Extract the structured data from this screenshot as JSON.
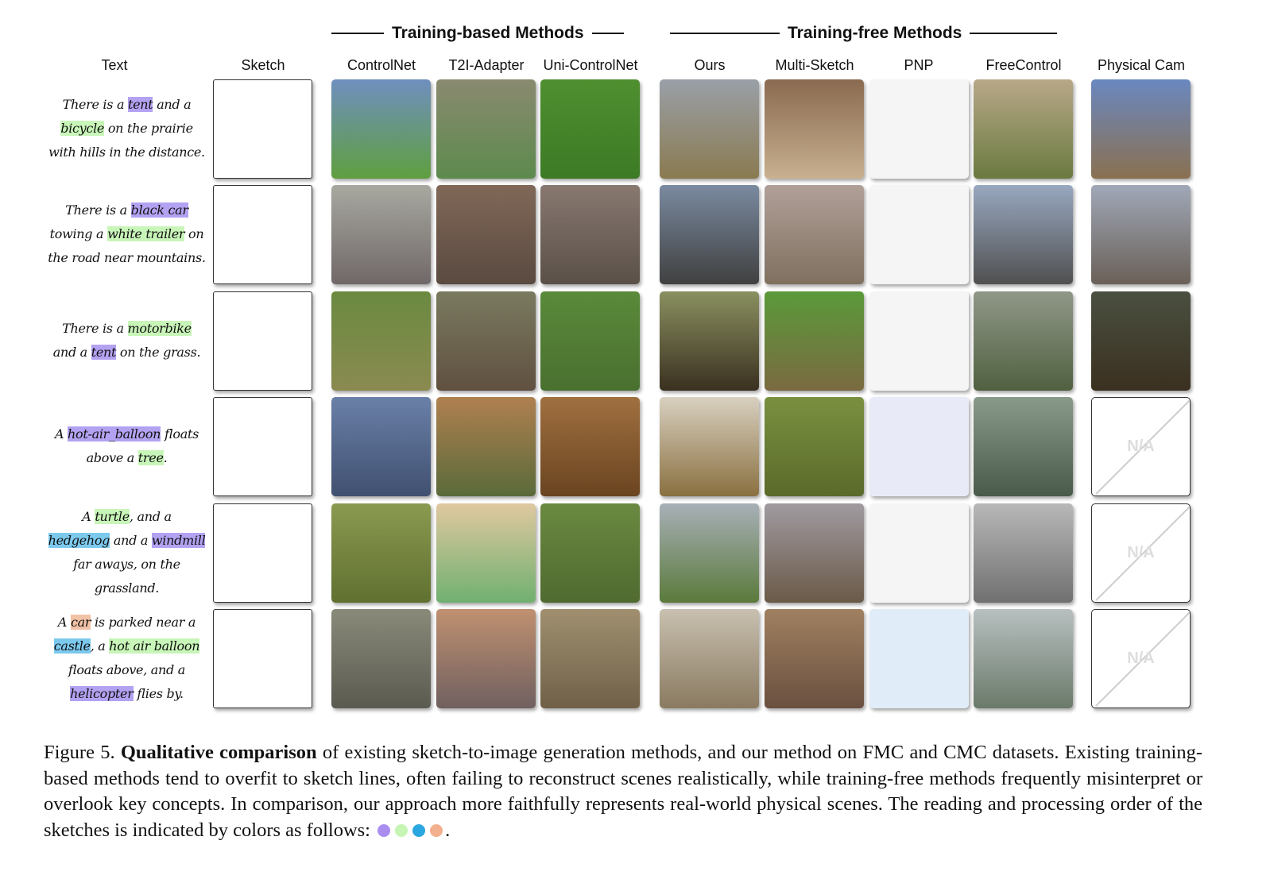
{
  "groups": {
    "training_based": "Training-based Methods",
    "training_free": "Training-free Methods"
  },
  "columns": [
    "Text",
    "Sketch",
    "ControlNet",
    "T2I-Adapter",
    "Uni-ControlNet",
    "Ours",
    "Multi-Sketch",
    "PNP",
    "FreeControl",
    "Physical Cam"
  ],
  "rows": [
    {
      "lines": [
        [
          {
            "t": "There is a "
          },
          {
            "t": "tent",
            "hl": "purple"
          },
          {
            "t": " and a"
          }
        ],
        [
          {
            "t": "bicycle",
            "hl": "green"
          },
          {
            "t": " on the prairie"
          }
        ],
        [
          {
            "t": "with hills in the distance."
          }
        ]
      ],
      "physical_cam": null
    },
    {
      "lines": [
        [
          {
            "t": "There is a "
          },
          {
            "t": "black car",
            "hl": "purple"
          }
        ],
        [
          {
            "t": "towing a "
          },
          {
            "t": "white trailer",
            "hl": "green"
          },
          {
            "t": " on"
          }
        ],
        [
          {
            "t": "the road near mountains."
          }
        ]
      ],
      "physical_cam": null
    },
    {
      "lines": [
        [
          {
            "t": "There is a "
          },
          {
            "t": "motorbike",
            "hl": "green"
          }
        ],
        [
          {
            "t": "and a "
          },
          {
            "t": "tent",
            "hl": "purple"
          },
          {
            "t": " on the grass."
          }
        ]
      ],
      "physical_cam": null
    },
    {
      "lines": [
        [
          {
            "t": "A "
          },
          {
            "t": "hot-air_balloon",
            "hl": "purple"
          },
          {
            "t": " floats"
          }
        ],
        [
          {
            "t": "above a "
          },
          {
            "t": "tree",
            "hl": "green"
          },
          {
            "t": "."
          }
        ]
      ],
      "physical_cam": "N/A"
    },
    {
      "lines": [
        [
          {
            "t": "A "
          },
          {
            "t": "turtle",
            "hl": "green"
          },
          {
            "t": ", and a"
          }
        ],
        [
          {
            "t": "hedgehog",
            "hl": "blue"
          },
          {
            "t": " and a "
          },
          {
            "t": "windmill",
            "hl": "purple"
          }
        ],
        [
          {
            "t": "far aways, on the"
          }
        ],
        [
          {
            "t": "grassland."
          }
        ]
      ],
      "physical_cam": "N/A"
    },
    {
      "lines": [
        [
          {
            "t": "A "
          },
          {
            "t": "car",
            "hl": "orange"
          },
          {
            "t": " is parked near a"
          }
        ],
        [
          {
            "t": "castle",
            "hl": "blue"
          },
          {
            "t": ", a "
          },
          {
            "t": "hot air balloon",
            "hl": "green"
          }
        ],
        [
          {
            "t": "floats above, and a"
          }
        ],
        [
          {
            "t": "helicopter",
            "hl": "purple"
          },
          {
            "t": " flies by."
          }
        ]
      ],
      "physical_cam": "N/A"
    }
  ],
  "caption": {
    "label": "Figure 5.",
    "bold": "Qualitative comparison",
    "text": " of existing sketch-to-image generation methods, and our method on FMC and CMC datasets. Existing training-based methods tend to overfit to sketch lines, often failing to reconstruct scenes realistically, while training-free methods frequently misinterpret or overlook key concepts. In comparison, our approach more faithfully represents real-world physical scenes. The reading and processing order of the sketches is indicated by colors as follows:",
    "end": ".",
    "order_colors": [
      "#a98ef0",
      "#c6f5b4",
      "#2aa7e0",
      "#f2b08f"
    ]
  }
}
